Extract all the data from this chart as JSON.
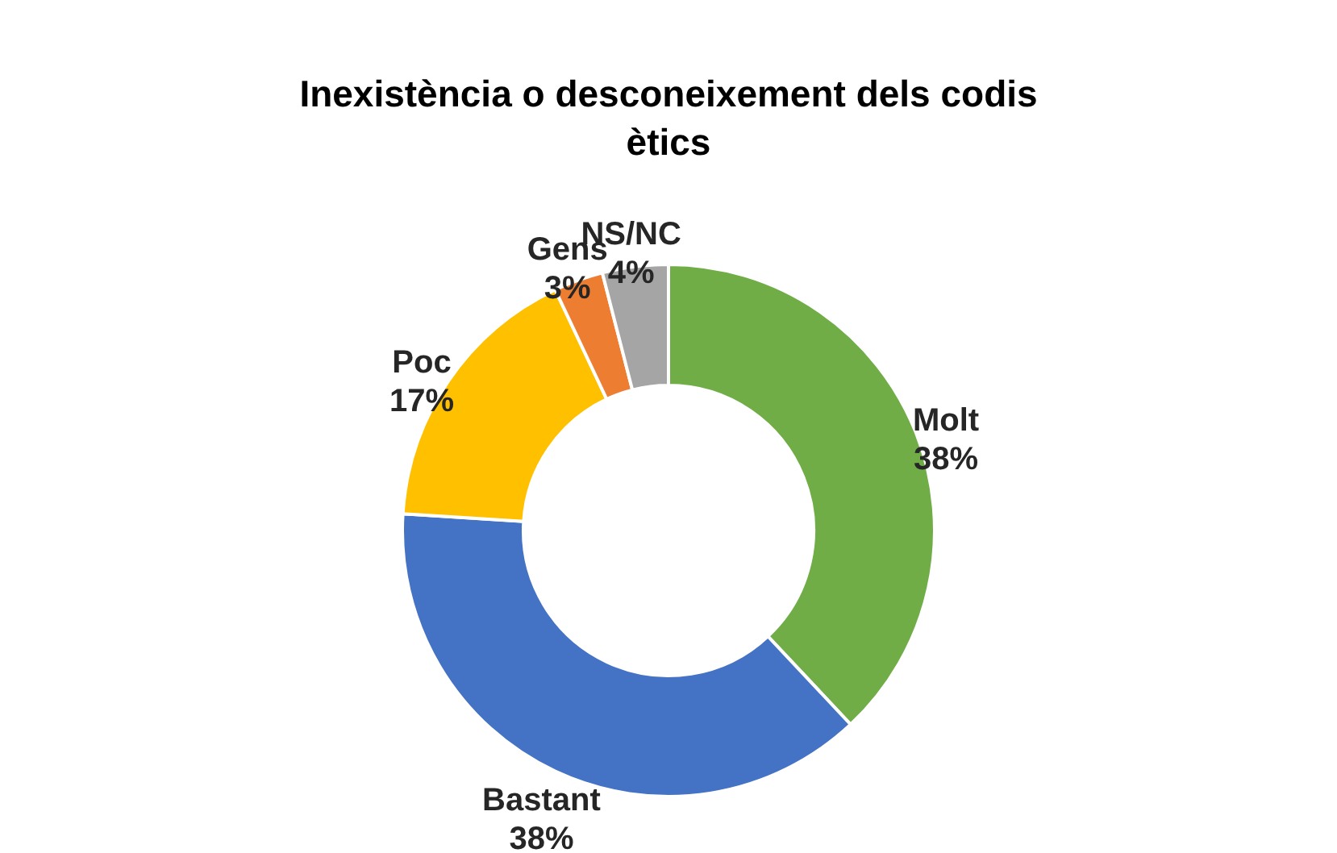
{
  "chart_data": {
    "type": "donut",
    "title": "Inexistència o desconeixement dels codis ètics",
    "categories": [
      "Molt",
      "Bastant",
      "Poc",
      "Gens",
      "NS/NC"
    ],
    "values": [
      38,
      38,
      17,
      3,
      4
    ],
    "colors": [
      "#70ad47",
      "#4472c4",
      "#ffc000",
      "#ed7d31",
      "#a5a5a5"
    ],
    "value_labels": [
      "38%",
      "38%",
      "17%",
      "3%",
      "4%"
    ],
    "legend": false
  }
}
